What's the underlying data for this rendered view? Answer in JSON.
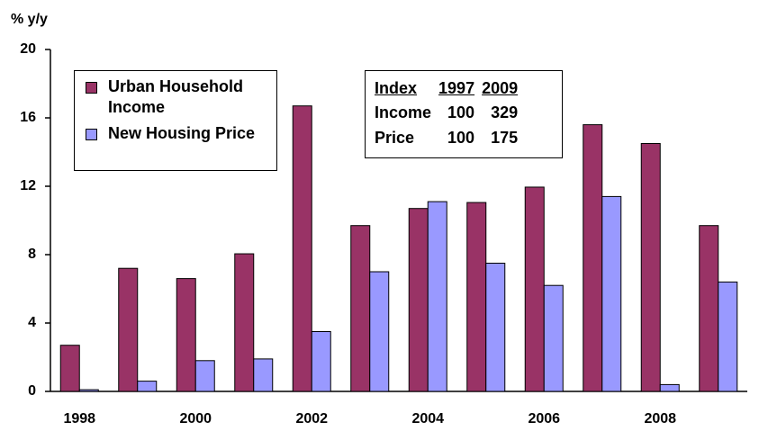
{
  "chart_data": {
    "type": "bar",
    "y_label": "% y/y",
    "categories": [
      "1998",
      null,
      "2000",
      null,
      "2002",
      null,
      "2004",
      null,
      "2006",
      null,
      "2008",
      null
    ],
    "series": [
      {
        "name": "Urban Household Income",
        "color": "#993366",
        "values": [
          2.7,
          7.2,
          6.6,
          8.05,
          16.7,
          9.7,
          10.7,
          11.05,
          11.95,
          15.6,
          14.5,
          9.7
        ]
      },
      {
        "name": "New Housing Price",
        "color": "#9999ff",
        "values": [
          0.1,
          0.6,
          1.8,
          1.9,
          3.5,
          7.0,
          11.1,
          7.5,
          6.2,
          11.4,
          0.4,
          6.4
        ]
      }
    ],
    "ylim": [
      0,
      20
    ],
    "yticks": [
      0,
      4,
      8,
      12,
      16,
      20
    ],
    "grid": false,
    "table": {
      "header": [
        "Index",
        "1997",
        "2009"
      ],
      "rows": [
        [
          "Income",
          100,
          329
        ],
        [
          "Price",
          100,
          175
        ]
      ]
    }
  }
}
